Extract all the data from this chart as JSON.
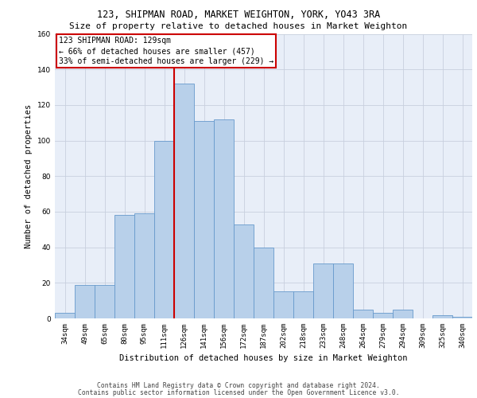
{
  "title1": "123, SHIPMAN ROAD, MARKET WEIGHTON, YORK, YO43 3RA",
  "title2": "Size of property relative to detached houses in Market Weighton",
  "xlabel": "Distribution of detached houses by size in Market Weighton",
  "ylabel": "Number of detached properties",
  "footer1": "Contains HM Land Registry data © Crown copyright and database right 2024.",
  "footer2": "Contains public sector information licensed under the Open Government Licence v3.0.",
  "categories": [
    "34sqm",
    "49sqm",
    "65sqm",
    "80sqm",
    "95sqm",
    "111sqm",
    "126sqm",
    "141sqm",
    "156sqm",
    "172sqm",
    "187sqm",
    "202sqm",
    "218sqm",
    "233sqm",
    "248sqm",
    "264sqm",
    "279sqm",
    "294sqm",
    "309sqm",
    "325sqm",
    "340sqm"
  ],
  "bar_values": [
    3,
    19,
    19,
    58,
    59,
    100,
    132,
    111,
    112,
    53,
    40,
    15,
    15,
    31,
    31,
    5,
    3,
    5,
    0,
    2,
    1
  ],
  "bar_color": "#b8d0ea",
  "bar_edge_color": "#6699cc",
  "vline_color": "#cc0000",
  "annotation_box_text": "123 SHIPMAN ROAD: 129sqm\n← 66% of detached houses are smaller (457)\n33% of semi-detached houses are larger (229) →",
  "annotation_box_color": "#cc0000",
  "ylim": [
    0,
    160
  ],
  "yticks": [
    0,
    20,
    40,
    60,
    80,
    100,
    120,
    140,
    160
  ],
  "grid_color": "#c8d0de",
  "bg_color": "#e8eef8",
  "title1_fontsize": 8.5,
  "title2_fontsize": 8.0,
  "ylabel_fontsize": 7.5,
  "xlabel_fontsize": 7.5,
  "tick_fontsize": 6.5,
  "annotation_fontsize": 7.0,
  "footer_fontsize": 5.8
}
